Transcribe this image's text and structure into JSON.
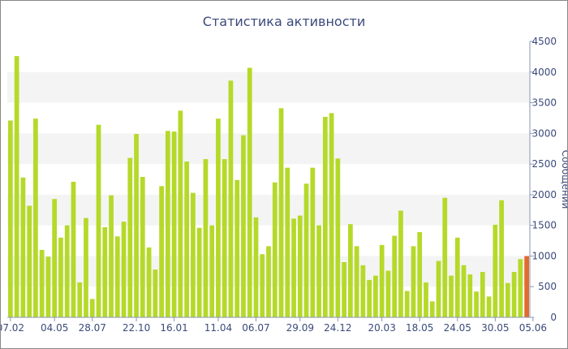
{
  "chart_data": {
    "type": "bar",
    "title": "Статистика активности",
    "ylabel": "Сообщений",
    "xlabel": "",
    "ylim": [
      0,
      4500
    ],
    "yticks": [
      0,
      500,
      1000,
      1500,
      2000,
      2500,
      3000,
      3500,
      4000,
      4500
    ],
    "grid": "alternating horizontal bands",
    "legend": "none",
    "xtick_labels": [
      {
        "label": "07.02",
        "index": 0
      },
      {
        "label": "04.05",
        "index": 7
      },
      {
        "label": "28.07",
        "index": 13
      },
      {
        "label": "22.10",
        "index": 20
      },
      {
        "label": "16.01",
        "index": 26
      },
      {
        "label": "11.04",
        "index": 33
      },
      {
        "label": "06.07",
        "index": 39
      },
      {
        "label": "29.09",
        "index": 46
      },
      {
        "label": "24.12",
        "index": 52
      },
      {
        "label": "20.03",
        "index": 59
      },
      {
        "label": "18.05",
        "index": 65
      },
      {
        "label": "24.05",
        "index": 71
      },
      {
        "label": "30.05",
        "index": 77
      },
      {
        "label": "05.06",
        "index": 83
      }
    ],
    "values": [
      3210,
      4260,
      2280,
      1820,
      3240,
      1100,
      990,
      1930,
      1300,
      1500,
      2210,
      570,
      1620,
      300,
      3140,
      1470,
      1990,
      1320,
      1560,
      2600,
      2990,
      2290,
      1140,
      780,
      2140,
      3040,
      3030,
      3370,
      2540,
      2030,
      1460,
      2580,
      1500,
      3240,
      2580,
      3860,
      2240,
      2970,
      4070,
      1630,
      1030,
      1160,
      2200,
      3410,
      2440,
      1610,
      1660,
      2180,
      2440,
      1500,
      3270,
      3330,
      2590,
      900,
      1520,
      1160,
      850,
      610,
      680,
      1180,
      760,
      1330,
      1740,
      430,
      1160,
      1390,
      570,
      260,
      920,
      1950,
      680,
      1300,
      850,
      700,
      420,
      740,
      340,
      1510,
      1910,
      560,
      740,
      950,
      1000
    ],
    "highlight_last": true,
    "colors": {
      "bar": "#b5d929",
      "bar_highlight": "#e06b2f",
      "band": "#f4f4f4",
      "axis": "#8a96b3",
      "text": "#3b4a7a"
    }
  }
}
